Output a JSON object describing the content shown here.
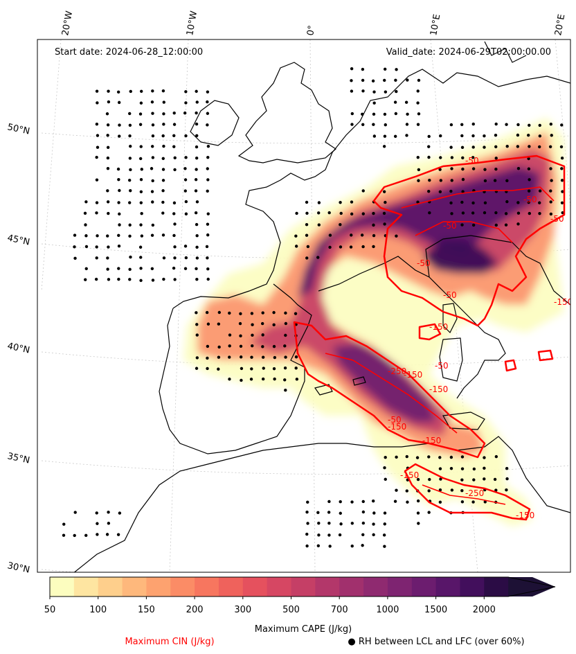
{
  "chart_data": {
    "type": "heatmap",
    "title_left": "Start date: 2024-06-28_12:00:00",
    "title_right": "Valid_date: 2024-06-29T02:00:00.00",
    "lon_labels": [
      "20°W",
      "10°W",
      "0°",
      "10°E",
      "20°E"
    ],
    "lat_labels": [
      "50°N",
      "45°N",
      "40°N",
      "35°N",
      "30°N"
    ],
    "colorbar": {
      "label": "Maximum CAPE (J/kg)",
      "levels": [
        50,
        75,
        100,
        125,
        150,
        175,
        200,
        250,
        300,
        400,
        500,
        600,
        700,
        800,
        1000,
        1250,
        1500,
        1750,
        2000,
        2500
      ],
      "tick_labels": [
        "50",
        "100",
        "150",
        "200",
        "300",
        "500",
        "700",
        "1000",
        "1500",
        "2000"
      ],
      "colors": [
        "#fcfdbf",
        "#fee5a1",
        "#fecf8c",
        "#feb87c",
        "#fda26f",
        "#fb8c66",
        "#f7765f",
        "#ef625c",
        "#e5515e",
        "#d64763",
        "#c53f66",
        "#b3376a",
        "#a1306d",
        "#8f2a70",
        "#7e2471",
        "#6c1d6f",
        "#581669",
        "#420f5c",
        "#2b0c45",
        "#1d1135"
      ],
      "extend": "max"
    },
    "cin_contours": {
      "label": "Maximum CIN (J/kg)",
      "color": "#ff0000",
      "visible_labels": [
        "-50",
        "-50",
        "-50",
        "-50",
        "-50",
        "-50",
        "-150",
        "-150",
        "-50",
        "-150",
        "-250",
        "-150",
        "-50",
        "-150",
        "-150",
        "-250",
        "-150",
        "-150"
      ]
    },
    "rh_dots": {
      "label": "● RH between LCL and LFC (over 60%)"
    }
  }
}
